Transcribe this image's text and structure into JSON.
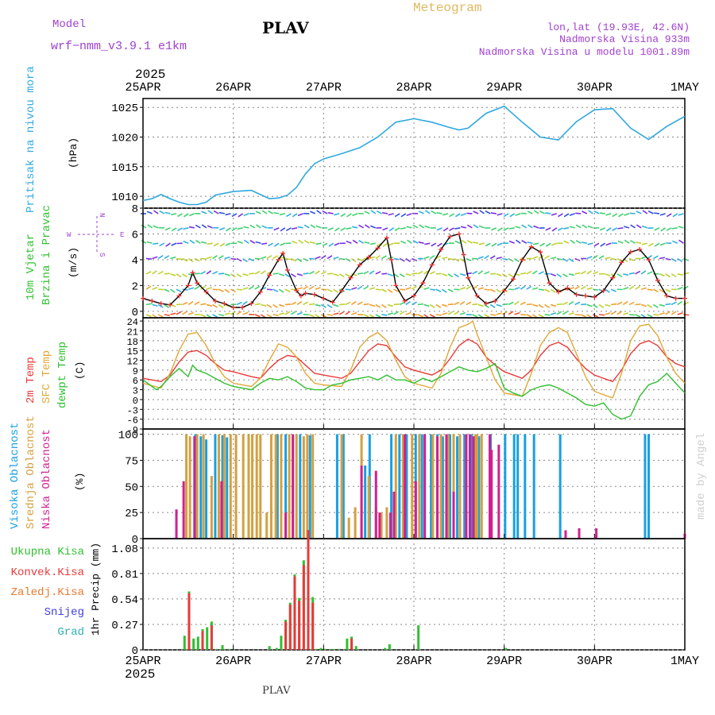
{
  "header": {
    "model_label": "Model",
    "model_name": "wrf−nmm_v3.9.1  e1km",
    "station_title": "PLAV",
    "product_title": "Meteogram",
    "lonlat": "lon,lat (19.93E, 42.6N)",
    "elevation": "Nadmorska Visina 933m",
    "model_elevation": "Nadmorska Visina u modelu 1001.89m",
    "watermark": "made by Angel",
    "footer_station": "PLAV",
    "colors": {
      "model": "#a040d0",
      "title_product": "#e0b860",
      "info": "#a040d0",
      "watermark": "#cfcfcf"
    }
  },
  "time_axis": {
    "year": "2025",
    "ticks": [
      "25APR",
      "26APR",
      "27APR",
      "28APR",
      "29APR",
      "30APR",
      "1MAY"
    ],
    "days_span": 6
  },
  "chart_data": [
    {
      "type": "line",
      "id": "pressure",
      "ylabel_main": "Pritisak na nivou mora",
      "ylabel_unit": "(hPa)",
      "ylim": [
        1008,
        1026.5
      ],
      "yticks": [
        1010,
        1015,
        1020,
        1025
      ],
      "grid": true,
      "series": [
        {
          "color": "#30a8e0",
          "x": [
            0,
            0.1,
            0.2,
            0.3,
            0.4,
            0.5,
            0.6,
            0.7,
            0.8,
            1.0,
            1.2,
            1.4,
            1.5,
            1.6,
            1.7,
            1.8,
            1.9,
            2.0,
            2.2,
            2.4,
            2.6,
            2.8,
            3.0,
            3.2,
            3.4,
            3.5,
            3.6,
            3.8,
            4.0,
            4.2,
            4.4,
            4.6,
            4.8,
            5.0,
            5.2,
            5.4,
            5.6,
            5.8,
            6.0
          ],
          "y": [
            1009.3,
            1009.6,
            1010.3,
            1009.6,
            1009.0,
            1008.6,
            1008.6,
            1009.0,
            1010.2,
            1010.8,
            1011.0,
            1009.6,
            1009.7,
            1010.2,
            1011.5,
            1013.8,
            1015.5,
            1016.3,
            1017.2,
            1018.2,
            1020.0,
            1022.5,
            1023.1,
            1022.5,
            1021.6,
            1021.2,
            1021.5,
            1024.0,
            1025.2,
            1022.5,
            1020.0,
            1019.5,
            1022.6,
            1024.6,
            1024.8,
            1021.5,
            1019.6,
            1021.8,
            1023.5
          ]
        }
      ]
    },
    {
      "type": "line",
      "id": "wind",
      "ylabel_main": "10m Vjetar",
      "ylabel_sub": "Brzina i Pravac",
      "ylabel_unit": "(m/s)",
      "compass": {
        "n": "N",
        "s": "S",
        "e": "E",
        "w": "W"
      },
      "ylim": [
        -0.5,
        8
      ],
      "yticks": [
        0,
        2,
        4,
        6,
        8
      ],
      "grid": true,
      "series": [
        {
          "color": "#000000",
          "marker_color": "#e83030",
          "x": [
            0,
            0.1,
            0.2,
            0.3,
            0.4,
            0.5,
            0.55,
            0.6,
            0.7,
            0.8,
            0.9,
            1.0,
            1.1,
            1.2,
            1.3,
            1.4,
            1.5,
            1.55,
            1.6,
            1.7,
            1.75,
            1.8,
            1.9,
            2.0,
            2.1,
            2.2,
            2.3,
            2.4,
            2.5,
            2.6,
            2.7,
            2.75,
            2.8,
            2.9,
            3.0,
            3.1,
            3.2,
            3.3,
            3.4,
            3.5,
            3.55,
            3.6,
            3.7,
            3.8,
            3.9,
            4.0,
            4.1,
            4.2,
            4.3,
            4.4,
            4.5,
            4.6,
            4.7,
            4.8,
            4.9,
            5.0,
            5.1,
            5.2,
            5.3,
            5.4,
            5.5,
            5.6,
            5.7,
            5.8,
            5.9,
            6.0
          ],
          "y": [
            1.0,
            0.8,
            0.6,
            0.5,
            1.2,
            2.0,
            3.0,
            2.2,
            1.5,
            0.8,
            0.6,
            0.3,
            0.3,
            0.6,
            1.5,
            2.8,
            4.0,
            4.5,
            3.2,
            1.6,
            1.2,
            1.4,
            1.3,
            1.0,
            0.7,
            1.6,
            2.6,
            3.6,
            4.2,
            4.9,
            5.7,
            4.0,
            2.0,
            0.8,
            1.2,
            2.2,
            3.6,
            4.8,
            5.8,
            6.0,
            4.4,
            2.6,
            1.2,
            0.6,
            0.8,
            1.6,
            2.5,
            4.0,
            5.0,
            4.6,
            2.2,
            1.5,
            1.8,
            1.3,
            1.2,
            1.1,
            1.6,
            2.6,
            3.8,
            4.6,
            4.8,
            4.0,
            2.4,
            1.2,
            1.0,
            1.0
          ]
        }
      ]
    },
    {
      "type": "line",
      "id": "temperature",
      "ylabel_lines": [
        "2m Temp",
        "SFC Temp",
        "dewpt Temp"
      ],
      "ylabel_unit": "(C)",
      "ylim": [
        -9,
        25
      ],
      "yticks": [
        -9,
        -6,
        -3,
        0,
        3,
        6,
        9,
        12,
        15,
        18,
        21,
        24
      ],
      "grid": true,
      "series": [
        {
          "name": "2m Temp",
          "color": "#e83a3a",
          "x": [
            0,
            0.2,
            0.3,
            0.4,
            0.5,
            0.6,
            0.7,
            0.8,
            0.9,
            1.0,
            1.2,
            1.3,
            1.4,
            1.5,
            1.6,
            1.7,
            1.8,
            1.9,
            2.0,
            2.2,
            2.3,
            2.4,
            2.5,
            2.6,
            2.7,
            2.8,
            2.9,
            3.0,
            3.2,
            3.3,
            3.4,
            3.5,
            3.6,
            3.7,
            3.8,
            3.9,
            4.0,
            4.2,
            4.3,
            4.4,
            4.5,
            4.6,
            4.7,
            4.8,
            4.9,
            5.0,
            5.2,
            5.3,
            5.4,
            5.5,
            5.6,
            5.7,
            5.8,
            5.9,
            6.0
          ],
          "y": [
            6.5,
            5.5,
            7.5,
            11.5,
            14.5,
            15.0,
            13.5,
            11.0,
            9.0,
            8.5,
            7.0,
            6.5,
            9.5,
            12.0,
            13.5,
            13.0,
            10.5,
            8.0,
            7.5,
            6.5,
            8.0,
            11.5,
            15.0,
            17.0,
            16.5,
            13.0,
            10.0,
            9.0,
            7.5,
            9.0,
            12.5,
            16.5,
            18.5,
            17.0,
            13.0,
            10.5,
            8.5,
            6.5,
            9.0,
            13.5,
            16.5,
            17.5,
            16.0,
            12.5,
            9.5,
            7.5,
            5.5,
            9.0,
            14.0,
            17.0,
            18.0,
            16.5,
            13.0,
            11.0,
            10.0
          ]
        },
        {
          "name": "SFC Temp",
          "color": "#e0a838",
          "x": [
            0,
            0.2,
            0.3,
            0.4,
            0.5,
            0.6,
            0.7,
            0.8,
            0.9,
            1.0,
            1.2,
            1.3,
            1.4,
            1.5,
            1.6,
            1.7,
            1.8,
            1.9,
            2.0,
            2.2,
            2.3,
            2.4,
            2.5,
            2.6,
            2.7,
            2.8,
            2.9,
            3.0,
            3.2,
            3.3,
            3.4,
            3.5,
            3.6,
            3.65,
            3.7,
            3.8,
            3.9,
            4.0,
            4.2,
            4.3,
            4.4,
            4.5,
            4.6,
            4.7,
            4.8,
            4.9,
            5.0,
            5.2,
            5.3,
            5.4,
            5.5,
            5.6,
            5.7,
            5.8,
            5.9,
            6.0
          ],
          "y": [
            5.0,
            3.5,
            8.0,
            15.0,
            20.0,
            20.5,
            16.5,
            11.0,
            7.0,
            5.0,
            4.0,
            6.5,
            12.0,
            17.0,
            16.0,
            13.0,
            8.0,
            5.0,
            4.5,
            4.0,
            9.0,
            16.0,
            19.0,
            20.5,
            18.0,
            12.0,
            7.0,
            5.0,
            3.5,
            8.0,
            16.0,
            22.0,
            23.0,
            24.0,
            20.0,
            13.0,
            6.0,
            2.0,
            1.0,
            8.0,
            16.5,
            20.5,
            22.0,
            20.5,
            14.0,
            7.0,
            2.5,
            0.5,
            8.0,
            18.0,
            22.5,
            23.0,
            19.5,
            13.0,
            8.0,
            5.0
          ]
        },
        {
          "name": "dewpt Temp",
          "color": "#30c030",
          "x": [
            0,
            0.15,
            0.2,
            0.3,
            0.4,
            0.5,
            0.55,
            0.6,
            0.7,
            0.8,
            0.9,
            1.0,
            1.1,
            1.2,
            1.3,
            1.4,
            1.5,
            1.6,
            1.7,
            1.8,
            1.9,
            2.0,
            2.1,
            2.2,
            2.3,
            2.4,
            2.5,
            2.6,
            2.7,
            2.8,
            2.9,
            3.0,
            3.1,
            3.2,
            3.3,
            3.4,
            3.5,
            3.6,
            3.7,
            3.8,
            3.9,
            4.0,
            4.1,
            4.2,
            4.3,
            4.4,
            4.5,
            4.6,
            4.7,
            4.8,
            4.9,
            5.0,
            5.1,
            5.2,
            5.3,
            5.4,
            5.5,
            5.6,
            5.7,
            5.8,
            5.9,
            6.0
          ],
          "y": [
            6.0,
            3.0,
            4.0,
            7.0,
            9.5,
            7.0,
            10.5,
            9.0,
            8.0,
            6.5,
            5.0,
            4.0,
            3.5,
            3.0,
            5.0,
            6.5,
            6.0,
            7.0,
            5.5,
            3.5,
            3.0,
            3.0,
            4.5,
            5.0,
            6.0,
            6.5,
            7.0,
            6.0,
            7.5,
            6.0,
            6.0,
            5.0,
            6.5,
            5.5,
            7.0,
            8.5,
            10.0,
            9.0,
            8.5,
            9.5,
            11.0,
            3.5,
            2.0,
            1.0,
            3.0,
            4.0,
            4.5,
            3.5,
            2.0,
            0.5,
            -1.5,
            -2.0,
            -1.0,
            -4.5,
            -6.0,
            -5.0,
            1.0,
            4.5,
            5.5,
            8.0,
            5.0,
            2.0
          ]
        }
      ]
    },
    {
      "type": "bar",
      "id": "clouds",
      "ylabel_lines": [
        "Visoka Oblacnost",
        "Srednja Oblacnost",
        "Niska Oblacnost"
      ],
      "ylabel_unit": "(%)",
      "ylim": [
        0,
        105
      ],
      "yticks": [
        0,
        25,
        50,
        75,
        100
      ],
      "grid": true,
      "series": [
        {
          "name": "Visoka Oblacnost",
          "color": "#18a0e0",
          "x": [
            0.58,
            0.64,
            0.7,
            0.8,
            0.88,
            0.93,
            1.49,
            1.58,
            1.66,
            1.74,
            1.85,
            2.15,
            2.22,
            2.46,
            2.51,
            2.75,
            2.84,
            2.92,
            3.02,
            3.09,
            3.19,
            3.26,
            3.32,
            3.4,
            3.48,
            3.56,
            3.64,
            3.72,
            3.85,
            4.01,
            4.11,
            4.15,
            4.23,
            4.33,
            4.62,
            5.56,
            5.6
          ],
          "y": [
            100,
            98,
            95,
            100,
            99,
            97,
            100,
            100,
            98,
            100,
            99,
            100,
            100,
            70,
            100,
            100,
            100,
            100,
            100,
            100,
            100,
            100,
            98,
            100,
            98,
            100,
            100,
            98,
            100,
            100,
            100,
            100,
            100,
            100,
            100,
            100,
            100
          ]
        },
        {
          "name": "Srednja Oblacnost",
          "color": "#d4a040",
          "x": [
            0.48,
            0.52,
            0.6,
            0.67,
            0.76,
            0.84,
            0.9,
            0.97,
            1.03,
            1.11,
            1.17,
            1.21,
            1.26,
            1.3,
            1.37,
            1.42,
            1.47,
            1.53,
            1.62,
            1.7,
            1.78,
            1.82,
            1.88,
            2.2,
            2.28,
            2.35,
            2.42,
            2.5,
            2.58,
            2.64,
            2.7,
            2.8,
            2.88,
            2.98,
            3.06,
            3.12,
            3.21,
            3.3,
            3.38,
            3.44,
            3.51,
            3.58,
            3.62,
            3.68,
            3.7,
            3.75
          ],
          "y": [
            100,
            98,
            100,
            100,
            60,
            100,
            100,
            100,
            100,
            100,
            100,
            100,
            100,
            100,
            25,
            100,
            100,
            100,
            100,
            100,
            98,
            100,
            100,
            100,
            20,
            30,
            100,
            60,
            30,
            25,
            30,
            100,
            100,
            100,
            100,
            100,
            100,
            100,
            100,
            100,
            100,
            100,
            100,
            100,
            100,
            100
          ]
        },
        {
          "name": "Niska Oblacnost",
          "color": "#d02090",
          "x": [
            0.37,
            0.45,
            0.57,
            0.87,
            1.58,
            1.66,
            2.42,
            2.58,
            2.62,
            2.74,
            2.78,
            2.9,
            3.02,
            3.12,
            3.26,
            3.36,
            3.44,
            3.58,
            3.62,
            3.66,
            3.84,
            3.86,
            3.94,
            4.68,
            4.83,
            5.02,
            6.0
          ],
          "y": [
            28,
            55,
            98,
            55,
            25,
            100,
            70,
            65,
            25,
            25,
            45,
            100,
            55,
            100,
            98,
            100,
            45,
            100,
            100,
            98,
            100,
            85,
            90,
            8,
            10,
            10,
            5
          ]
        }
      ]
    },
    {
      "type": "bar",
      "id": "precip",
      "ylabel_unit": "1hr Precip (mm)",
      "legend_entries": [
        "Ukupna Kisa",
        "Konvek.Kisa",
        "Zaledj.Kisa",
        "Snijeg",
        "Grad"
      ],
      "legend_colors": [
        "#30c030",
        "#e83a3a",
        "#e87a30",
        "#4040e0",
        "#30b0b0"
      ],
      "ylim": [
        0,
        1.18
      ],
      "yticks": [
        0,
        0.27,
        0.54,
        0.81,
        1.08
      ],
      "grid": true,
      "series": [
        {
          "name": "Ukupna Kisa",
          "color": "#30c030",
          "x": [
            0.46,
            0.51,
            0.56,
            0.61,
            0.66,
            0.71,
            0.76,
            0.82,
            0.88,
            0.95,
            1.4,
            1.48,
            1.53,
            1.58,
            1.63,
            1.68,
            1.73,
            1.78,
            1.83,
            1.88,
            1.92,
            1.97,
            2.02,
            2.1,
            2.17,
            2.26,
            2.31,
            2.36,
            2.68,
            2.73,
            3.05,
            4.02
          ],
          "y": [
            0.15,
            0.62,
            0.12,
            0.14,
            0.22,
            0.24,
            0.3,
            0.01,
            0.05,
            0.01,
            0.04,
            0.02,
            0.15,
            0.32,
            0.5,
            0.8,
            0.55,
            0.95,
            1.27,
            0.56,
            0.01,
            0.02,
            0.01,
            0.01,
            0.01,
            0.12,
            0.14,
            0.04,
            0.02,
            0.06,
            0.26,
            0.02
          ]
        },
        {
          "name": "Konvek.Kisa",
          "color": "#e83a3a",
          "x": [
            0.51,
            0.66,
            0.76,
            1.58,
            1.63,
            1.68,
            1.73,
            1.78,
            1.83,
            1.88,
            2.31
          ],
          "y": [
            0.6,
            0.2,
            0.26,
            0.3,
            0.48,
            0.78,
            0.52,
            0.9,
            1.27,
            0.5,
            0.12
          ]
        }
      ]
    }
  ]
}
